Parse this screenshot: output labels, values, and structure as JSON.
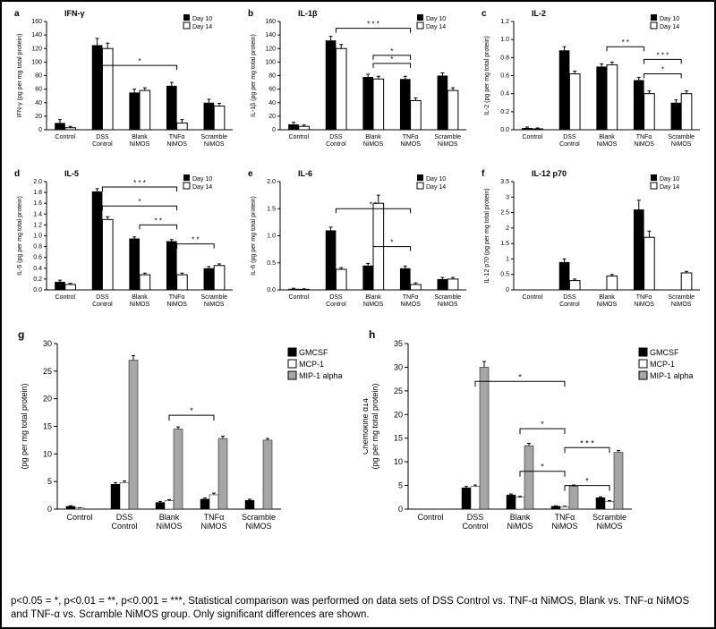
{
  "caption": "p<0.05 = *, p<0.01 = **, p<0.001 = ***, Statistical comparison was performed on data sets of DSS Control vs. TNF-α NiMOS, Blank vs. TNF-α NiMOS and TNF-α vs. Scramble NiMOS group. Only significant differences are shown.",
  "common": {
    "bar_black": "#000000",
    "bar_white_fill": "#ffffff",
    "bar_white_stroke": "#000000",
    "bar_grey": "#a6a6a6",
    "axis_color": "#000000",
    "font": "Arial",
    "label_fontsize": 7,
    "title_fontsize": 9,
    "axis_fontsize": 7,
    "categories_top": [
      "Control",
      "DSS\nControl",
      "Blank\nNiMOS",
      "TNFα\nNiMOS",
      "Scramble\nNiMOS"
    ],
    "legend_top": [
      "Day 10",
      "Day 14"
    ],
    "legend_bottom": [
      "GMCSF",
      "MCP-1",
      "MIP-1 alpha"
    ]
  },
  "panels_top": [
    {
      "id": "a",
      "title": "IFN-γ",
      "ylabel": "IFN-γ (pg per mg total protein)",
      "ymax": 160,
      "ytick": 20,
      "day10": [
        10,
        125,
        55,
        65,
        40
      ],
      "day10_err": [
        5,
        10,
        5,
        5,
        5
      ],
      "day14": [
        3,
        120,
        58,
        10,
        35
      ],
      "day14_err": [
        2,
        8,
        4,
        5,
        4
      ],
      "sig": [
        {
          "from": 1,
          "to": 3,
          "label": "*",
          "y": 95
        }
      ]
    },
    {
      "id": "b",
      "title": "IL-1β",
      "ylabel": "IL-1β (pg per mg total protein)",
      "ymax": 160,
      "ytick": 20,
      "day10": [
        8,
        132,
        78,
        75,
        80
      ],
      "day10_err": [
        3,
        6,
        4,
        4,
        4
      ],
      "day14": [
        5,
        120,
        75,
        43,
        58
      ],
      "day14_err": [
        2,
        6,
        4,
        4,
        4
      ],
      "sig": [
        {
          "from": 1,
          "to": 3,
          "label": "* * *",
          "y": 150
        },
        {
          "from": 2,
          "to": 3,
          "label": "*",
          "y": 110
        },
        {
          "from": 2,
          "to": 3,
          "label": "*",
          "y": 98,
          "series": "d14"
        }
      ]
    },
    {
      "id": "c",
      "title": "IL-2",
      "ylabel": "IL-2 (pg per mg total protein)",
      "ymax": 1.2,
      "ytick": 0.2,
      "day10": [
        0.02,
        0.88,
        0.7,
        0.55,
        0.3
      ],
      "day10_err": [
        0.01,
        0.04,
        0.03,
        0.03,
        0.03
      ],
      "day14": [
        0.01,
        0.62,
        0.72,
        0.4,
        0.4
      ],
      "day14_err": [
        0.01,
        0.03,
        0.03,
        0.03,
        0.03
      ],
      "sig": [
        {
          "from": 2,
          "to": 3,
          "label": "* *",
          "y": 0.92
        },
        {
          "from": 3,
          "to": 4,
          "label": "* * *",
          "y": 0.78
        },
        {
          "from": 3,
          "to": 4,
          "label": "*",
          "y": 0.62,
          "series": "d14"
        }
      ]
    },
    {
      "id": "d",
      "title": "IL-5",
      "ylabel": "IL-5 (pg per mg total protein)",
      "ymax": 2.0,
      "ytick": 0.2,
      "day10": [
        0.15,
        1.82,
        0.95,
        0.9,
        0.4
      ],
      "day10_err": [
        0.03,
        0.05,
        0.03,
        0.03,
        0.03
      ],
      "day14": [
        0.1,
        1.3,
        0.28,
        0.28,
        0.45
      ],
      "day14_err": [
        0.02,
        0.05,
        0.03,
        0.03,
        0.03
      ],
      "sig": [
        {
          "from": 1,
          "to": 3,
          "label": "* * *",
          "y": 1.9
        },
        {
          "from": 1,
          "to": 3,
          "label": "*",
          "y": 1.55,
          "series": "d14"
        },
        {
          "from": 2,
          "to": 3,
          "label": "* *",
          "y": 1.2
        },
        {
          "from": 3,
          "to": 4,
          "label": "* *",
          "y": 0.85
        }
      ]
    },
    {
      "id": "e",
      "title": "IL-6",
      "ylabel": "IL-6 (pg per mg total protein)",
      "ymax": 2.0,
      "ytick": 0.5,
      "day10": [
        0.02,
        1.1,
        0.45,
        0.4,
        0.2
      ],
      "day10_err": [
        0.01,
        0.06,
        0.04,
        0.04,
        0.03
      ],
      "day14": [
        0.01,
        0.38,
        1.6,
        0.1,
        0.2
      ],
      "day14_err": [
        0.01,
        0.03,
        0.15,
        0.03,
        0.03
      ],
      "sig": [
        {
          "from": 1,
          "to": 3,
          "label": "* *",
          "y": 1.5
        },
        {
          "from": 2,
          "to": 3,
          "label": "*",
          "y": 0.8
        }
      ]
    },
    {
      "id": "f",
      "title": "IL-12 p70",
      "ylabel": "IL-12 p70\n(pg per mg total protein)",
      "ymax": 3.5,
      "ytick": 0.5,
      "day10": [
        0.0,
        0.9,
        0.0,
        2.6,
        0.0
      ],
      "day10_err": [
        0,
        0.1,
        0,
        0.3,
        0
      ],
      "day14": [
        0.0,
        0.3,
        0.45,
        1.7,
        0.55
      ],
      "day14_err": [
        0,
        0.05,
        0.05,
        0.2,
        0.05
      ],
      "sig": []
    }
  ],
  "panels_bottom": [
    {
      "id": "g",
      "ylabel": "(pg per mg total protein)",
      "ymax": 30,
      "ytick": 5,
      "gmcsf": [
        0.5,
        4.5,
        1.2,
        1.8,
        1.6
      ],
      "gmcsf_err": [
        0.1,
        0.3,
        0.2,
        0.2,
        0.2
      ],
      "mcp1": [
        0.2,
        4.8,
        1.5,
        2.6,
        0.0
      ],
      "mcp1_err": [
        0.05,
        0.3,
        0.2,
        0.3,
        0
      ],
      "mip1": [
        0.0,
        27.0,
        14.5,
        12.8,
        12.5
      ],
      "mip1_err": [
        0,
        0.8,
        0.4,
        0.4,
        0.3
      ],
      "sig": [
        {
          "from": 2,
          "to": 3,
          "label": "*",
          "y": 17
        }
      ]
    },
    {
      "id": "h",
      "ylabel": "Chemokine d14\n(pg per mg total protein)",
      "ymax": 35,
      "ytick": 5,
      "gmcsf": [
        0.0,
        4.5,
        3.0,
        0.6,
        2.4
      ],
      "gmcsf_err": [
        0,
        0.3,
        0.2,
        0.1,
        0.2
      ],
      "mcp1": [
        0.0,
        4.8,
        2.5,
        0.5,
        1.6
      ],
      "mcp1_err": [
        0,
        0.3,
        0.2,
        0.1,
        0.2
      ],
      "mip1": [
        0.0,
        30.0,
        13.4,
        4.8,
        12.0
      ],
      "mip1_err": [
        0,
        1.2,
        0.5,
        0.3,
        0.4
      ],
      "sig": [
        {
          "from": 1,
          "to": 3,
          "label": "*",
          "y": 27
        },
        {
          "from": 2,
          "to": 3,
          "label": "*",
          "y": 17
        },
        {
          "from": 3,
          "to": 4,
          "label": "* * *",
          "y": 13
        },
        {
          "from": 2,
          "to": 3,
          "label": "*",
          "y": 8,
          "series": "inner"
        },
        {
          "from": 3,
          "to": 4,
          "label": "*",
          "y": 5,
          "series": "inner"
        }
      ]
    }
  ]
}
